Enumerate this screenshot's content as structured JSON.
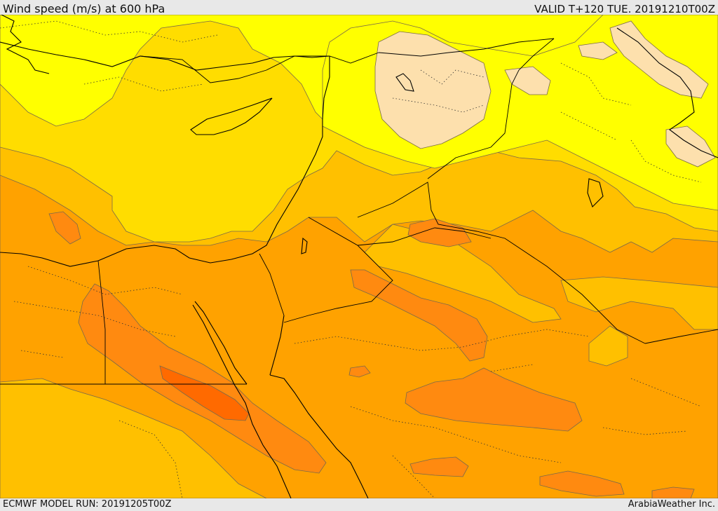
{
  "header": {
    "title": "Wind speed (m/s) at 600 hPa",
    "valid": "VALID T+120 TUE. 20191210T00Z"
  },
  "footer": {
    "model_run": "ECMWF MODEL RUN: 20191205T00Z",
    "credit": "ArabiaWeather Inc."
  },
  "map": {
    "field": "wind speed",
    "level": "600 hPa",
    "colors": {
      "band_lightest": "#fde0ad",
      "band_yellow": "#ffff00",
      "band_gold": "#ffdd00",
      "band_amber": "#ffc000",
      "band_orange": "#ffa200",
      "band_dark_orange": "#ff8a10",
      "band_red_orange": "#ff6a00"
    }
  }
}
